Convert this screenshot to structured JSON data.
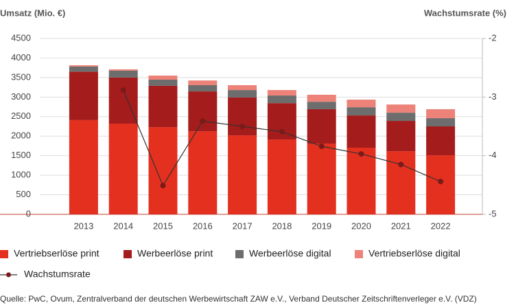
{
  "chart_data": {
    "type": "bar",
    "stacked": true,
    "y_axis_label": "Umsatz (Mio. €)",
    "y2_axis_label": "Wachstumsrate (%)",
    "categories": [
      "2013",
      "2014",
      "2015",
      "2016",
      "2017",
      "2018",
      "2019",
      "2020",
      "2021",
      "2022"
    ],
    "series": [
      {
        "name": "Vertriebserlöse print",
        "color": "#e3301f",
        "values": [
          2410,
          2320,
          2230,
          2125,
          2020,
          1915,
          1810,
          1705,
          1615,
          1510
        ]
      },
      {
        "name": "Werbeerlöse print",
        "color": "#a51c1c",
        "values": [
          1240,
          1180,
          1060,
          1020,
          970,
          930,
          880,
          825,
          775,
          740
        ]
      },
      {
        "name": "Werbeerlöse digital",
        "color": "#6d6d6d",
        "values": [
          130,
          175,
          155,
          160,
          190,
          195,
          190,
          210,
          210,
          210
        ]
      },
      {
        "name": "Vertriebserlöse digital",
        "color": "#ec8278",
        "values": [
          35,
          35,
          105,
          120,
          125,
          140,
          180,
          195,
          210,
          230
        ]
      },
      {
        "name": "Wachstumsrate",
        "type": "line",
        "axis": "y2",
        "color": "#333333",
        "marker_color": "#7a1a1a",
        "values": [
          null,
          -2.88,
          -4.51,
          -3.41,
          -3.5,
          -3.59,
          -3.84,
          -3.97,
          -4.15,
          -4.44
        ]
      }
    ],
    "ylim": [
      0,
      4500
    ],
    "yticks": [
      0,
      500,
      1000,
      1500,
      2000,
      2500,
      3000,
      3500,
      4000,
      4500
    ],
    "y2lim": [
      -5,
      -2
    ],
    "y2ticks": [
      -2,
      -3,
      -4,
      -5
    ],
    "grid": true,
    "source": "Quelle: PwC, Ovum, Zentralverband der deutschen Werbewirtschaft ZAW e.V., Verband Deutscher Zeitschriftenverleger e.V. (VDZ)"
  }
}
